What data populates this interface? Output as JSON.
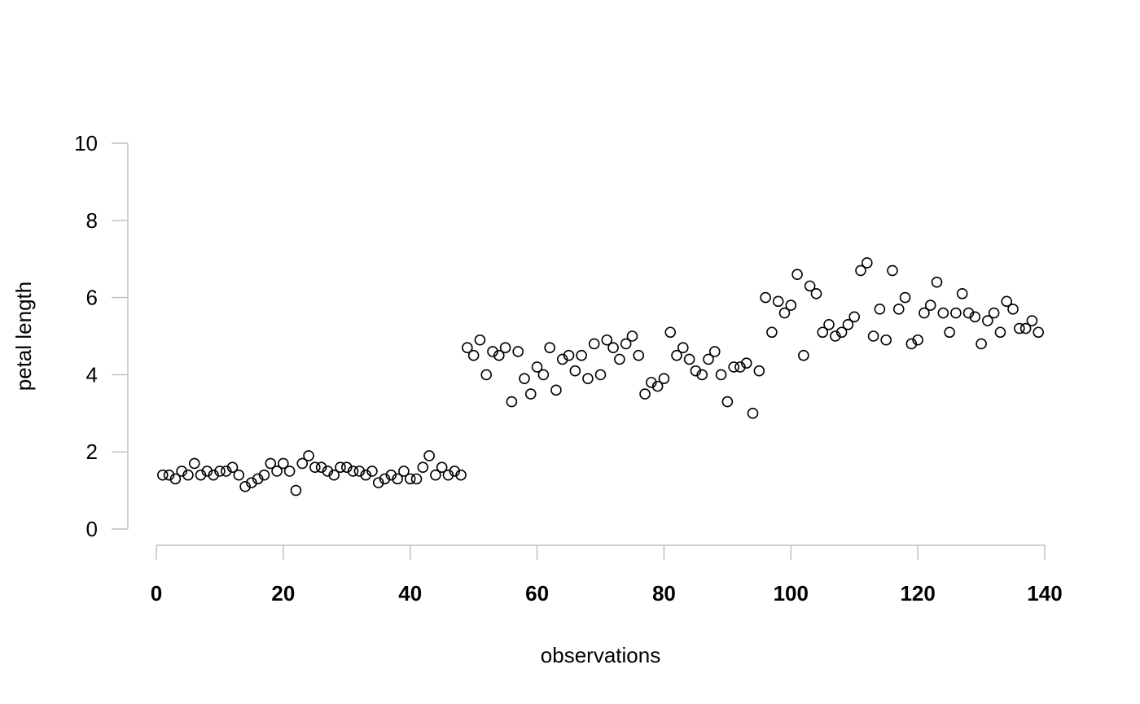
{
  "chart_data": {
    "type": "scatter",
    "xlabel": "observations",
    "ylabel": "petal length",
    "xlim": [
      0,
      140
    ],
    "ylim": [
      0,
      10
    ],
    "xticks": [
      0,
      20,
      40,
      60,
      80,
      100,
      120,
      140
    ],
    "yticks": [
      0,
      2,
      4,
      6,
      8,
      10
    ],
    "grid": false,
    "marker": "open-circle",
    "marker_color": "#000000",
    "axis_color": "#bdbdbd",
    "series": [
      {
        "x": [
          1,
          2,
          3,
          4,
          5,
          6,
          7,
          8,
          9,
          10,
          11,
          12,
          13,
          14,
          15,
          16,
          17,
          18,
          19,
          20,
          21,
          22,
          23,
          24,
          25,
          26,
          27,
          28,
          29,
          30,
          31,
          32,
          33,
          34,
          35,
          36,
          37,
          38,
          39,
          40,
          41,
          42,
          43,
          44,
          45,
          46,
          47,
          48,
          49,
          50,
          51,
          52,
          53,
          54,
          55,
          56,
          57,
          58,
          59,
          60,
          61,
          62,
          63,
          64,
          65,
          66,
          67,
          68,
          69,
          70,
          71,
          72,
          73,
          74,
          75,
          76,
          77,
          78,
          79,
          80,
          81,
          82,
          83,
          84,
          85,
          86,
          87,
          88,
          89,
          90,
          91,
          92,
          93,
          94,
          95,
          96,
          97,
          98,
          99,
          100,
          101,
          102,
          103,
          104,
          105,
          106,
          107,
          108,
          109,
          110,
          111,
          112,
          113,
          114,
          115,
          116,
          117,
          118,
          119,
          120,
          121,
          122,
          123,
          124,
          125,
          126,
          127,
          128,
          129,
          130,
          131,
          132,
          133,
          134,
          135,
          136,
          137,
          138,
          139
        ],
        "y": [
          1.4,
          1.4,
          1.3,
          1.5,
          1.4,
          1.7,
          1.4,
          1.5,
          1.4,
          1.5,
          1.5,
          1.6,
          1.4,
          1.1,
          1.2,
          1.3,
          1.4,
          1.7,
          1.5,
          1.7,
          1.5,
          1.0,
          1.7,
          1.9,
          1.6,
          1.6,
          1.5,
          1.4,
          1.6,
          1.6,
          1.5,
          1.5,
          1.4,
          1.5,
          1.2,
          1.3,
          1.4,
          1.3,
          1.5,
          1.3,
          1.3,
          1.6,
          1.9,
          1.4,
          1.6,
          1.4,
          1.5,
          1.4,
          4.7,
          4.5,
          4.9,
          4.0,
          4.6,
          4.5,
          4.7,
          3.3,
          4.6,
          3.9,
          3.5,
          4.2,
          4.0,
          4.7,
          3.6,
          4.4,
          4.5,
          4.1,
          4.5,
          3.9,
          4.8,
          4.0,
          4.9,
          4.7,
          4.4,
          4.8,
          5.0,
          4.5,
          3.5,
          3.8,
          3.7,
          3.9,
          5.1,
          4.5,
          4.7,
          4.4,
          4.1,
          4.0,
          4.4,
          4.6,
          4.0,
          3.3,
          4.2,
          4.2,
          4.3,
          3.0,
          4.1,
          6.0,
          5.1,
          5.9,
          5.6,
          5.8,
          6.6,
          4.5,
          6.3,
          6.1,
          5.1,
          5.3,
          5.0,
          5.1,
          5.3,
          5.5,
          6.7,
          6.9,
          5.0,
          5.7,
          4.9,
          6.7,
          5.7,
          6.0,
          4.8,
          4.9,
          5.6,
          5.8,
          6.4,
          5.6,
          5.1,
          5.6,
          6.1,
          5.6,
          5.5,
          4.8,
          5.4,
          5.6,
          5.1,
          5.9,
          5.7,
          5.2,
          5.2,
          5.4,
          5.1
        ]
      }
    ]
  }
}
